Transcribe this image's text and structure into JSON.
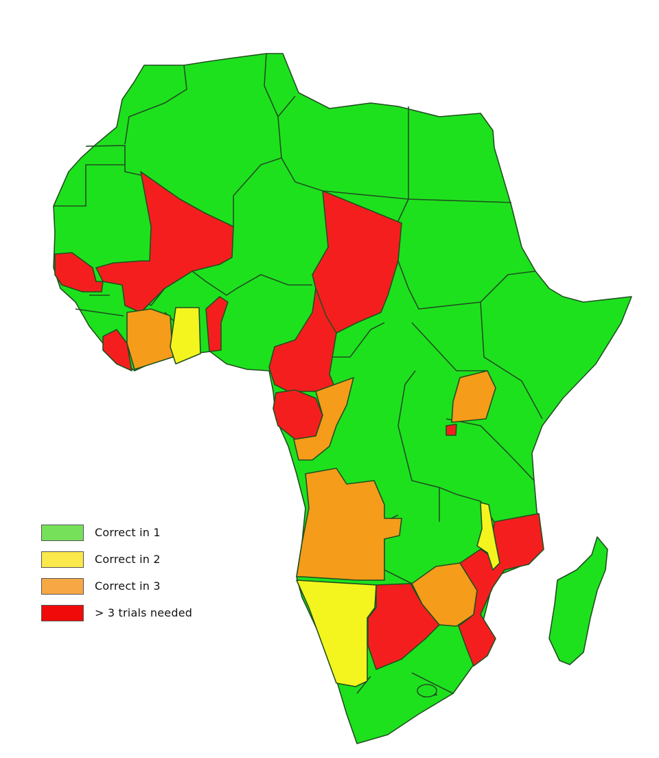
{
  "colors": {
    "green": "#1ee11e",
    "yellow": "#f4f51e",
    "orange": "#f59c1a",
    "red": "#f51e1e",
    "legend_green": "#77e05a",
    "legend_yellow": "#fbe84a",
    "legend_orange": "#f7a845",
    "legend_red": "#f00a0a"
  },
  "legend": {
    "items": [
      {
        "label": "Correct in 1",
        "color": "#77e05a"
      },
      {
        "label": "Correct in 2",
        "color": "#fbe84a"
      },
      {
        "label": "Correct in 3",
        "color": "#f7a845"
      },
      {
        "label": "> 3 trials needed",
        "color": "#f00a0a"
      }
    ]
  }
}
